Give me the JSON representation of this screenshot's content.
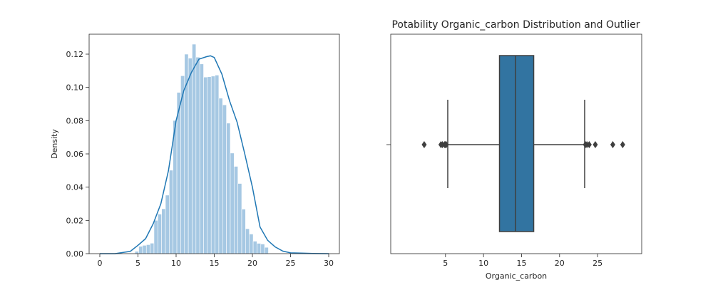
{
  "chart_data": [
    {
      "type": "histogram",
      "title": "",
      "xlabel": "",
      "ylabel": "Density",
      "xlim": [
        -1.4,
        31.4
      ],
      "ylim": [
        0,
        0.132
      ],
      "xticks": [
        "0",
        "5",
        "10",
        "15",
        "20",
        "25",
        "30"
      ],
      "yticks": [
        "0.00",
        "0.02",
        "0.04",
        "0.06",
        "0.08",
        "0.10",
        "0.12"
      ],
      "bins": {
        "start": 4.6,
        "width": 0.5,
        "densities": [
          0.0014,
          0.0044,
          0.005,
          0.0054,
          0.0063,
          0.02,
          0.0238,
          0.027,
          0.0352,
          0.0502,
          0.0801,
          0.097,
          0.107,
          0.12,
          0.1176,
          0.126,
          0.1182,
          0.1141,
          0.1062,
          0.1064,
          0.1068,
          0.1074,
          0.0935,
          0.0895,
          0.0785,
          0.0605,
          0.0525,
          0.0422,
          0.0268,
          0.015,
          0.0118,
          0.0075,
          0.0062,
          0.0058,
          0.0038
        ]
      },
      "kde": {
        "x": [
          0,
          2,
          4,
          5,
          6,
          7,
          8,
          9,
          10,
          11,
          12,
          13,
          14,
          14.5,
          15,
          16,
          17,
          18,
          19,
          20,
          21,
          22,
          23,
          24,
          25,
          26,
          28,
          30
        ],
        "y": [
          0.0,
          0.0,
          0.0014,
          0.005,
          0.009,
          0.018,
          0.03,
          0.05,
          0.08,
          0.098,
          0.109,
          0.117,
          0.1185,
          0.119,
          0.118,
          0.108,
          0.092,
          0.079,
          0.06,
          0.04,
          0.016,
          0.008,
          0.004,
          0.0015,
          0.0005,
          0.0004,
          0.0001,
          0.0
        ]
      },
      "colors": {
        "bars": "#a6c8e3",
        "kde": "#1f77b4"
      }
    },
    {
      "type": "boxplot",
      "title": "Potability Organic_carbon Distribution and Outlier",
      "xlabel": "Organic_carbon",
      "ylabel": "",
      "xlim": [
        -2.2,
        30.8
      ],
      "xticks": [
        "5",
        "10",
        "15",
        "20",
        "25"
      ],
      "box": {
        "whisker_low": 5.3,
        "q1": 12.1,
        "median": 14.2,
        "q3": 16.6,
        "whisker_high": 23.3
      },
      "outliers": [
        2.2,
        4.4,
        4.6,
        4.9,
        5.0,
        5.1,
        23.4,
        23.6,
        23.9,
        24.7,
        27.0,
        28.3
      ],
      "colors": {
        "box": "#3274a1",
        "lines": "#3f3f3f"
      }
    }
  ]
}
